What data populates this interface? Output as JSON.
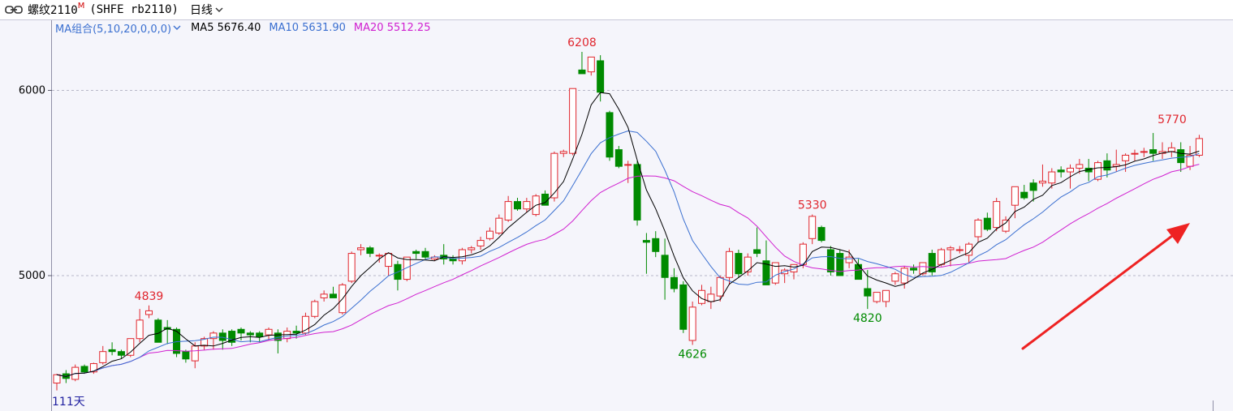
{
  "titlebar": {
    "name": "螺纹2110",
    "badge": "M",
    "code": "(SHFE rb2110)",
    "period": "日线",
    "link_icon": "link-icon",
    "caret_icon": "chevron-down-icon"
  },
  "legend": {
    "combo": "MA组合(5,10,20,0,0,0)",
    "ma5": "MA5 5676.40",
    "ma10": "MA10 5631.90",
    "ma20": "MA20 5512.25"
  },
  "colors": {
    "up": "#e0262e",
    "down": "#008a00",
    "ma5": "#000000",
    "ma10": "#3a6fd0",
    "ma20": "#d020d0",
    "grid": "#b8b8c8",
    "arrow": "#ee2222"
  },
  "count_label": "111天",
  "chart_data": {
    "type": "candlestick",
    "yticks": [
      5000,
      6000
    ],
    "grid": "dashed horizontal",
    "ohlc": [
      [
        4420,
        4470,
        4380,
        4465
      ],
      [
        4470,
        4490,
        4420,
        4445
      ],
      [
        4440,
        4520,
        4430,
        4505
      ],
      [
        4510,
        4520,
        4470,
        4480
      ],
      [
        4480,
        4530,
        4470,
        4525
      ],
      [
        4530,
        4620,
        4520,
        4590
      ],
      [
        4600,
        4640,
        4570,
        4590
      ],
      [
        4590,
        4600,
        4550,
        4570
      ],
      [
        4570,
        4660,
        4560,
        4660
      ],
      [
        4660,
        4820,
        4640,
        4760
      ],
      [
        4790,
        4839,
        4770,
        4810
      ],
      [
        4760,
        4770,
        4640,
        4640
      ],
      [
        4720,
        4760,
        4630,
        4710
      ],
      [
        4710,
        4720,
        4560,
        4580
      ],
      [
        4590,
        4600,
        4530,
        4550
      ],
      [
        4540,
        4640,
        4500,
        4620
      ],
      [
        4620,
        4670,
        4600,
        4660
      ],
      [
        4660,
        4700,
        4600,
        4690
      ],
      [
        4690,
        4710,
        4600,
        4650
      ],
      [
        4700,
        4710,
        4620,
        4640
      ],
      [
        4710,
        4720,
        4650,
        4690
      ],
      [
        4690,
        4700,
        4640,
        4680
      ],
      [
        4690,
        4700,
        4640,
        4670
      ],
      [
        4680,
        4720,
        4650,
        4710
      ],
      [
        4690,
        4710,
        4580,
        4650
      ],
      [
        4660,
        4720,
        4640,
        4700
      ],
      [
        4700,
        4730,
        4660,
        4690
      ],
      [
        4690,
        4800,
        4680,
        4780
      ],
      [
        4780,
        4870,
        4770,
        4860
      ],
      [
        4880,
        4920,
        4860,
        4900
      ],
      [
        4900,
        4940,
        4880,
        4880
      ],
      [
        4800,
        4960,
        4790,
        4950
      ],
      [
        4970,
        5130,
        4960,
        5120
      ],
      [
        5140,
        5170,
        5110,
        5150
      ],
      [
        5150,
        5160,
        5100,
        5120
      ],
      [
        5110,
        5120,
        5070,
        5110
      ],
      [
        5050,
        5120,
        5000,
        5120
      ],
      [
        5060,
        5080,
        4920,
        4980
      ],
      [
        4980,
        5100,
        4970,
        5100
      ],
      [
        5130,
        5140,
        5090,
        5120
      ],
      [
        5130,
        5150,
        5090,
        5100
      ],
      [
        5090,
        5110,
        5080,
        5100
      ],
      [
        5110,
        5170,
        5060,
        5090
      ],
      [
        5090,
        5110,
        5060,
        5080
      ],
      [
        5080,
        5150,
        5060,
        5140
      ],
      [
        5140,
        5160,
        5120,
        5150
      ],
      [
        5160,
        5210,
        5140,
        5190
      ],
      [
        5200,
        5260,
        5190,
        5240
      ],
      [
        5230,
        5330,
        5220,
        5310
      ],
      [
        5300,
        5430,
        5290,
        5400
      ],
      [
        5400,
        5420,
        5350,
        5360
      ],
      [
        5360,
        5420,
        5340,
        5400
      ],
      [
        5330,
        5440,
        5320,
        5430
      ],
      [
        5440,
        5460,
        5380,
        5380
      ],
      [
        5420,
        5670,
        5400,
        5660
      ],
      [
        5660,
        5680,
        5640,
        5670
      ],
      [
        5660,
        6010,
        5650,
        6010
      ],
      [
        6110,
        6208,
        6090,
        6090
      ],
      [
        6100,
        6180,
        6080,
        6180
      ],
      [
        6160,
        6190,
        5940,
        5990
      ],
      [
        5880,
        5890,
        5620,
        5640
      ],
      [
        5680,
        5700,
        5580,
        5590
      ],
      [
        5600,
        5620,
        5500,
        5600
      ],
      [
        5600,
        5620,
        5270,
        5300
      ],
      [
        5190,
        5230,
        5010,
        5180
      ],
      [
        5200,
        5240,
        5100,
        5130
      ],
      [
        5110,
        5200,
        4870,
        4990
      ],
      [
        4990,
        5040,
        4910,
        4930
      ],
      [
        4950,
        4970,
        4690,
        4710
      ],
      [
        4650,
        4860,
        4626,
        4830
      ],
      [
        4850,
        4950,
        4840,
        4920
      ],
      [
        4860,
        4940,
        4820,
        4900
      ],
      [
        4890,
        5000,
        4860,
        4990
      ],
      [
        4990,
        5150,
        4950,
        5130
      ],
      [
        5120,
        5140,
        4990,
        5010
      ],
      [
        5020,
        5120,
        5000,
        5100
      ],
      [
        5140,
        5260,
        5100,
        5120
      ],
      [
        5080,
        5190,
        4960,
        4950
      ],
      [
        4960,
        5070,
        4950,
        5070
      ],
      [
        5010,
        5040,
        4960,
        5030
      ],
      [
        5020,
        5060,
        4980,
        5060
      ],
      [
        5060,
        5180,
        5040,
        5170
      ],
      [
        5200,
        5330,
        5170,
        5320
      ],
      [
        5260,
        5270,
        5180,
        5190
      ],
      [
        5140,
        5160,
        5000,
        5020
      ],
      [
        5120,
        5140,
        5000,
        5000
      ],
      [
        5070,
        5140,
        5040,
        5100
      ],
      [
        5060,
        5090,
        4980,
        4980
      ],
      [
        4930,
        5030,
        4820,
        4890
      ],
      [
        4860,
        4910,
        4850,
        4910
      ],
      [
        4860,
        4920,
        4830,
        4920
      ],
      [
        4970,
        5020,
        4950,
        5010
      ],
      [
        4960,
        5050,
        4930,
        5040
      ],
      [
        5040,
        5060,
        5010,
        5030
      ],
      [
        5010,
        5070,
        5000,
        5070
      ],
      [
        5120,
        5140,
        5000,
        5020
      ],
      [
        5060,
        5150,
        5050,
        5140
      ],
      [
        5140,
        5160,
        5050,
        5150
      ],
      [
        5140,
        5160,
        5120,
        5140
      ],
      [
        5110,
        5180,
        5070,
        5170
      ],
      [
        5210,
        5310,
        5180,
        5300
      ],
      [
        5310,
        5340,
        5240,
        5250
      ],
      [
        5260,
        5420,
        5240,
        5400
      ],
      [
        5240,
        5320,
        5230,
        5300
      ],
      [
        5380,
        5470,
        5310,
        5480
      ],
      [
        5450,
        5490,
        5410,
        5420
      ],
      [
        5500,
        5520,
        5400,
        5460
      ],
      [
        5500,
        5600,
        5480,
        5510
      ],
      [
        5500,
        5580,
        5470,
        5560
      ],
      [
        5570,
        5590,
        5530,
        5560
      ],
      [
        5560,
        5600,
        5470,
        5580
      ],
      [
        5580,
        5630,
        5550,
        5600
      ],
      [
        5580,
        5630,
        5510,
        5560
      ],
      [
        5520,
        5620,
        5510,
        5610
      ],
      [
        5620,
        5660,
        5530,
        5570
      ],
      [
        5590,
        5680,
        5560,
        5600
      ],
      [
        5620,
        5660,
        5560,
        5650
      ],
      [
        5660,
        5680,
        5620,
        5660
      ],
      [
        5670,
        5690,
        5640,
        5670
      ],
      [
        5680,
        5770,
        5620,
        5660
      ],
      [
        5660,
        5720,
        5630,
        5670
      ],
      [
        5670,
        5720,
        5640,
        5690
      ],
      [
        5680,
        5720,
        5560,
        5610
      ],
      [
        5590,
        5700,
        5570,
        5650
      ],
      [
        5650,
        5760,
        5640,
        5740
      ]
    ],
    "annotations": [
      {
        "text": "4839",
        "index": 10,
        "price": 4839,
        "pos": "above",
        "color": "up"
      },
      {
        "text": "6208",
        "index": 57,
        "price": 6208,
        "pos": "above",
        "color": "up"
      },
      {
        "text": "4626",
        "index": 69,
        "price": 4626,
        "pos": "below",
        "color": "down"
      },
      {
        "text": "5330",
        "index": 82,
        "price": 5330,
        "pos": "above",
        "color": "up"
      },
      {
        "text": "4820",
        "index": 88,
        "price": 4820,
        "pos": "below",
        "color": "down"
      },
      {
        "text": "5770",
        "index": 120,
        "price": 5770,
        "pos": "above-right",
        "color": "up"
      }
    ]
  }
}
